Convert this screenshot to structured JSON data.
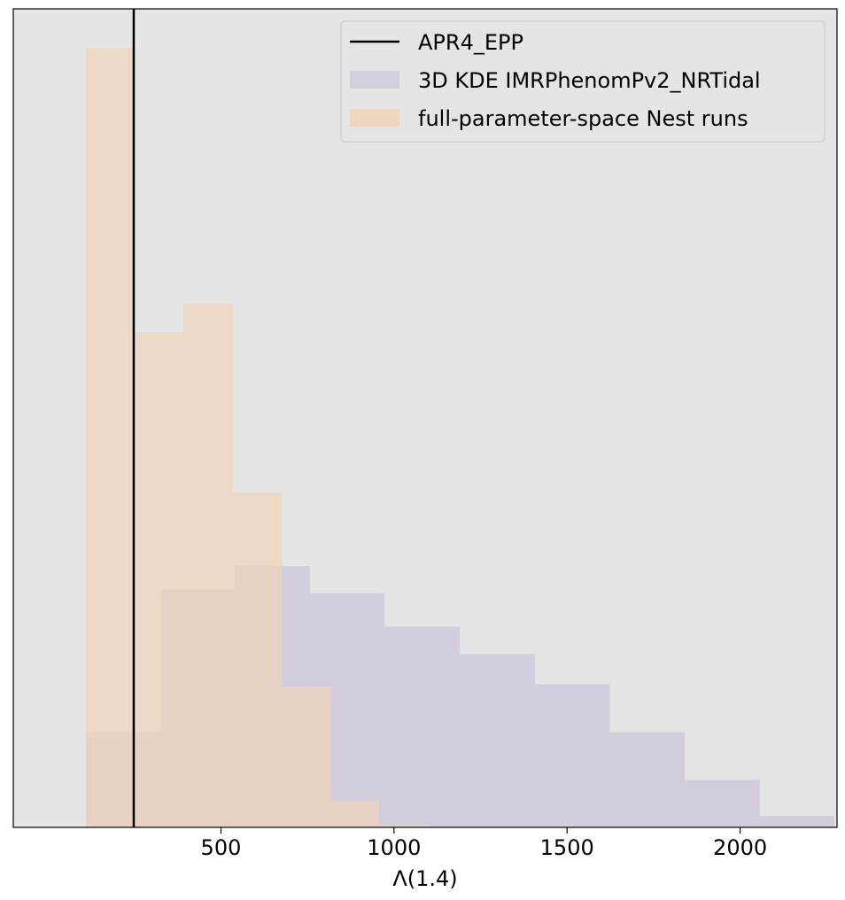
{
  "chart_data": {
    "type": "histogram",
    "xlabel": "Λ(1.4)",
    "ylabel": "",
    "xlim": [
      -100,
      2280
    ],
    "ylim": [
      0,
      1
    ],
    "x_ticks": [
      500,
      1000,
      1500,
      2000
    ],
    "y_ticks_shown": false,
    "grid": false,
    "background": "#e5e5e5",
    "legend_position": "top-right",
    "vline": {
      "name": "APR4_EPP",
      "x": 248,
      "color": "#000000"
    },
    "series": [
      {
        "name": "3D KDE IMRPhenomPv2_NRTidal",
        "color": "#d2cadb",
        "bins": [
          {
            "x0": 110,
            "x1": 325,
            "value": 0.116
          },
          {
            "x0": 325,
            "x1": 540,
            "value": 0.29
          },
          {
            "x0": 540,
            "x1": 757,
            "value": 0.319
          },
          {
            "x0": 757,
            "x1": 973,
            "value": 0.286
          },
          {
            "x0": 973,
            "x1": 1190,
            "value": 0.245
          },
          {
            "x0": 1190,
            "x1": 1407,
            "value": 0.212
          },
          {
            "x0": 1407,
            "x1": 1623,
            "value": 0.175
          },
          {
            "x0": 1623,
            "x1": 1840,
            "value": 0.116
          },
          {
            "x0": 1840,
            "x1": 2057,
            "value": 0.058
          },
          {
            "x0": 2057,
            "x1": 2273,
            "value": 0.014
          }
        ]
      },
      {
        "name": "full-parameter-space Nest runs",
        "color": "#f0d4ba",
        "bins": [
          {
            "x0": 110,
            "x1": 251,
            "value": 0.952
          },
          {
            "x0": 251,
            "x1": 392,
            "value": 0.605
          },
          {
            "x0": 392,
            "x1": 534,
            "value": 0.64
          },
          {
            "x0": 534,
            "x1": 676,
            "value": 0.409
          },
          {
            "x0": 676,
            "x1": 817,
            "value": 0.172
          },
          {
            "x0": 817,
            "x1": 958,
            "value": 0.032
          },
          {
            "x0": 958,
            "x1": 1099,
            "value": 0.003
          }
        ]
      }
    ]
  }
}
